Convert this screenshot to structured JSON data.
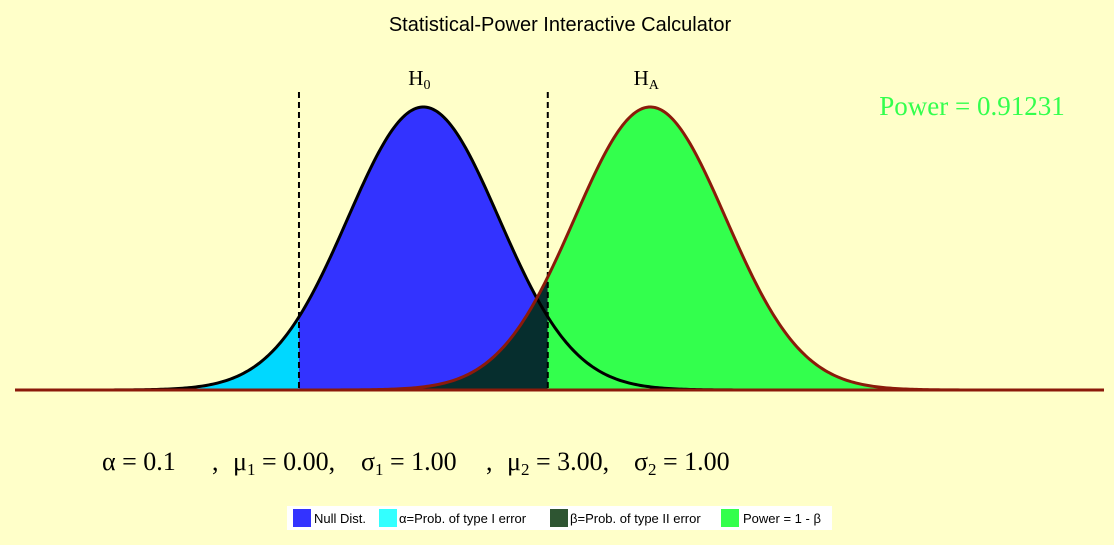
{
  "chart_data": {
    "type": "area",
    "title": "Statistical-Power Interactive Calculator",
    "null_dist": {
      "label": "H",
      "subscript": "0",
      "mean": 0.0,
      "sd": 1.0
    },
    "alt_dist": {
      "label": "H",
      "subscript": "A",
      "mean": 3.0,
      "sd": 1.0
    },
    "alpha": 0.1,
    "critical_values": [
      -1.645,
      1.645
    ],
    "xlim": [
      -5.4,
      9.0
    ],
    "power_text": "Power = 0.91231",
    "params": {
      "alpha": {
        "symbol": "α",
        "text": " = 0.1"
      },
      "mu1": {
        "symbol": "μ",
        "sub": "1",
        "text": " = 0.00,"
      },
      "sigma1": {
        "symbol": "σ",
        "sub": "1",
        "text": " = 1.00"
      },
      "mu2": {
        "symbol": "μ",
        "sub": "2",
        "text": " = 3.00,"
      },
      "sigma2": {
        "symbol": "σ",
        "sub": "2",
        "text": " = 1.00"
      },
      "separator": ","
    },
    "legend": {
      "placement": "bottom",
      "items": [
        {
          "label": "Null Dist.",
          "color": "#3333ff"
        },
        {
          "label": "α=Prob. of type I error",
          "color": "#33ffff"
        },
        {
          "label": "β=Prob. of type II error",
          "color": "#2e5532"
        },
        {
          "label": "Power = 1 - β",
          "color": "#33ff4d"
        }
      ]
    },
    "colors": {
      "background": "#ffffc9",
      "null_fill": "#3333ff",
      "alpha_fill": "#00d8ff",
      "beta_fill": "#062e2e",
      "power_fill": "#33ff4d",
      "null_curve": "#000000",
      "alt_curve": "#8b1a0a",
      "power_text": "#33ff4d"
    }
  }
}
